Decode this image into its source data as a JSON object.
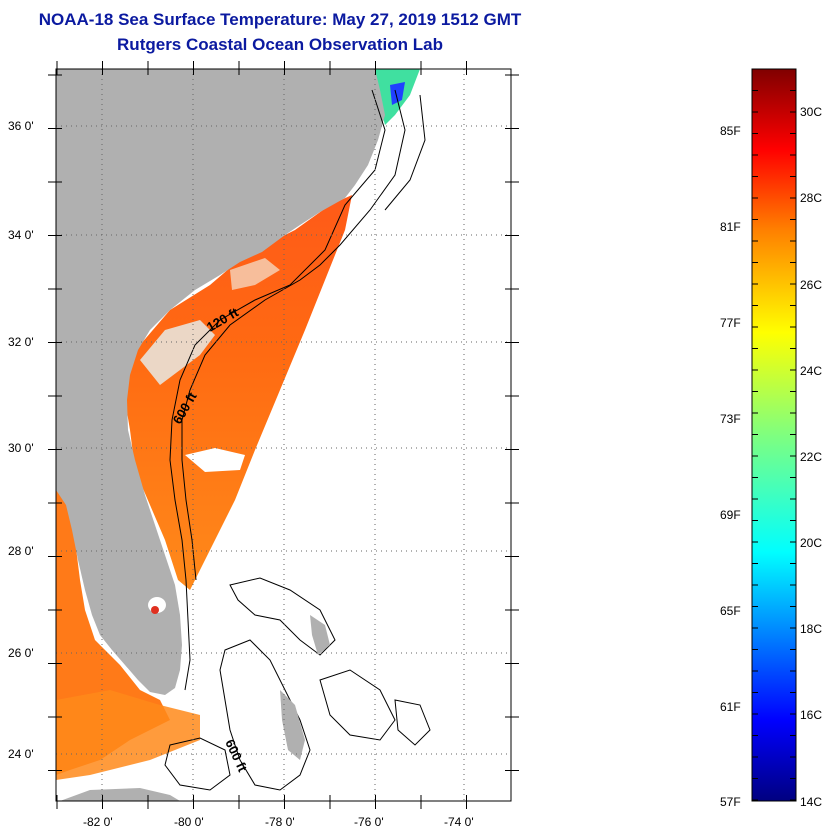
{
  "title": "NOAA-18 Sea Surface Temperature:  May 27, 2019 1512 GMT",
  "subtitle": "Rutgers Coastal Ocean Observation Lab",
  "map": {
    "lat_ticks": [
      {
        "lat": 36,
        "label": "36 0'"
      },
      {
        "lat": 34,
        "label": "34 0'"
      },
      {
        "lat": 32,
        "label": "32 0'"
      },
      {
        "lat": 30,
        "label": "30 0'"
      },
      {
        "lat": 28,
        "label": "28 0'"
      },
      {
        "lat": 26,
        "label": "26 0'"
      },
      {
        "lat": 24,
        "label": "24 0'"
      }
    ],
    "lon_ticks": [
      {
        "lon": -82,
        "label": "-82 0'"
      },
      {
        "lon": -80,
        "label": "-80 0'"
      },
      {
        "lon": -78,
        "label": "-78 0'"
      },
      {
        "lon": -76,
        "label": "-76 0'"
      },
      {
        "lon": -74,
        "label": "-74 0'"
      }
    ],
    "contour_labels": [
      "120 ft",
      "600 ft",
      "600 ft"
    ],
    "colors": {
      "land": "#b0b0b0",
      "ocean_missing": "#ffffff",
      "sst_warm": "#ff6a10",
      "sst_mid": "#ff9a20",
      "cloud": "#ffffff"
    }
  },
  "colorbar": {
    "range_c": [
      14,
      31
    ],
    "celsius_labels": [
      "30C",
      "28C",
      "26C",
      "24C",
      "22C",
      "20C",
      "18C",
      "16C",
      "14C"
    ],
    "fahrenheit_labels": [
      "85F",
      "81F",
      "77F",
      "73F",
      "69F",
      "65F",
      "61F",
      "57F"
    ],
    "colormap": "jet"
  }
}
